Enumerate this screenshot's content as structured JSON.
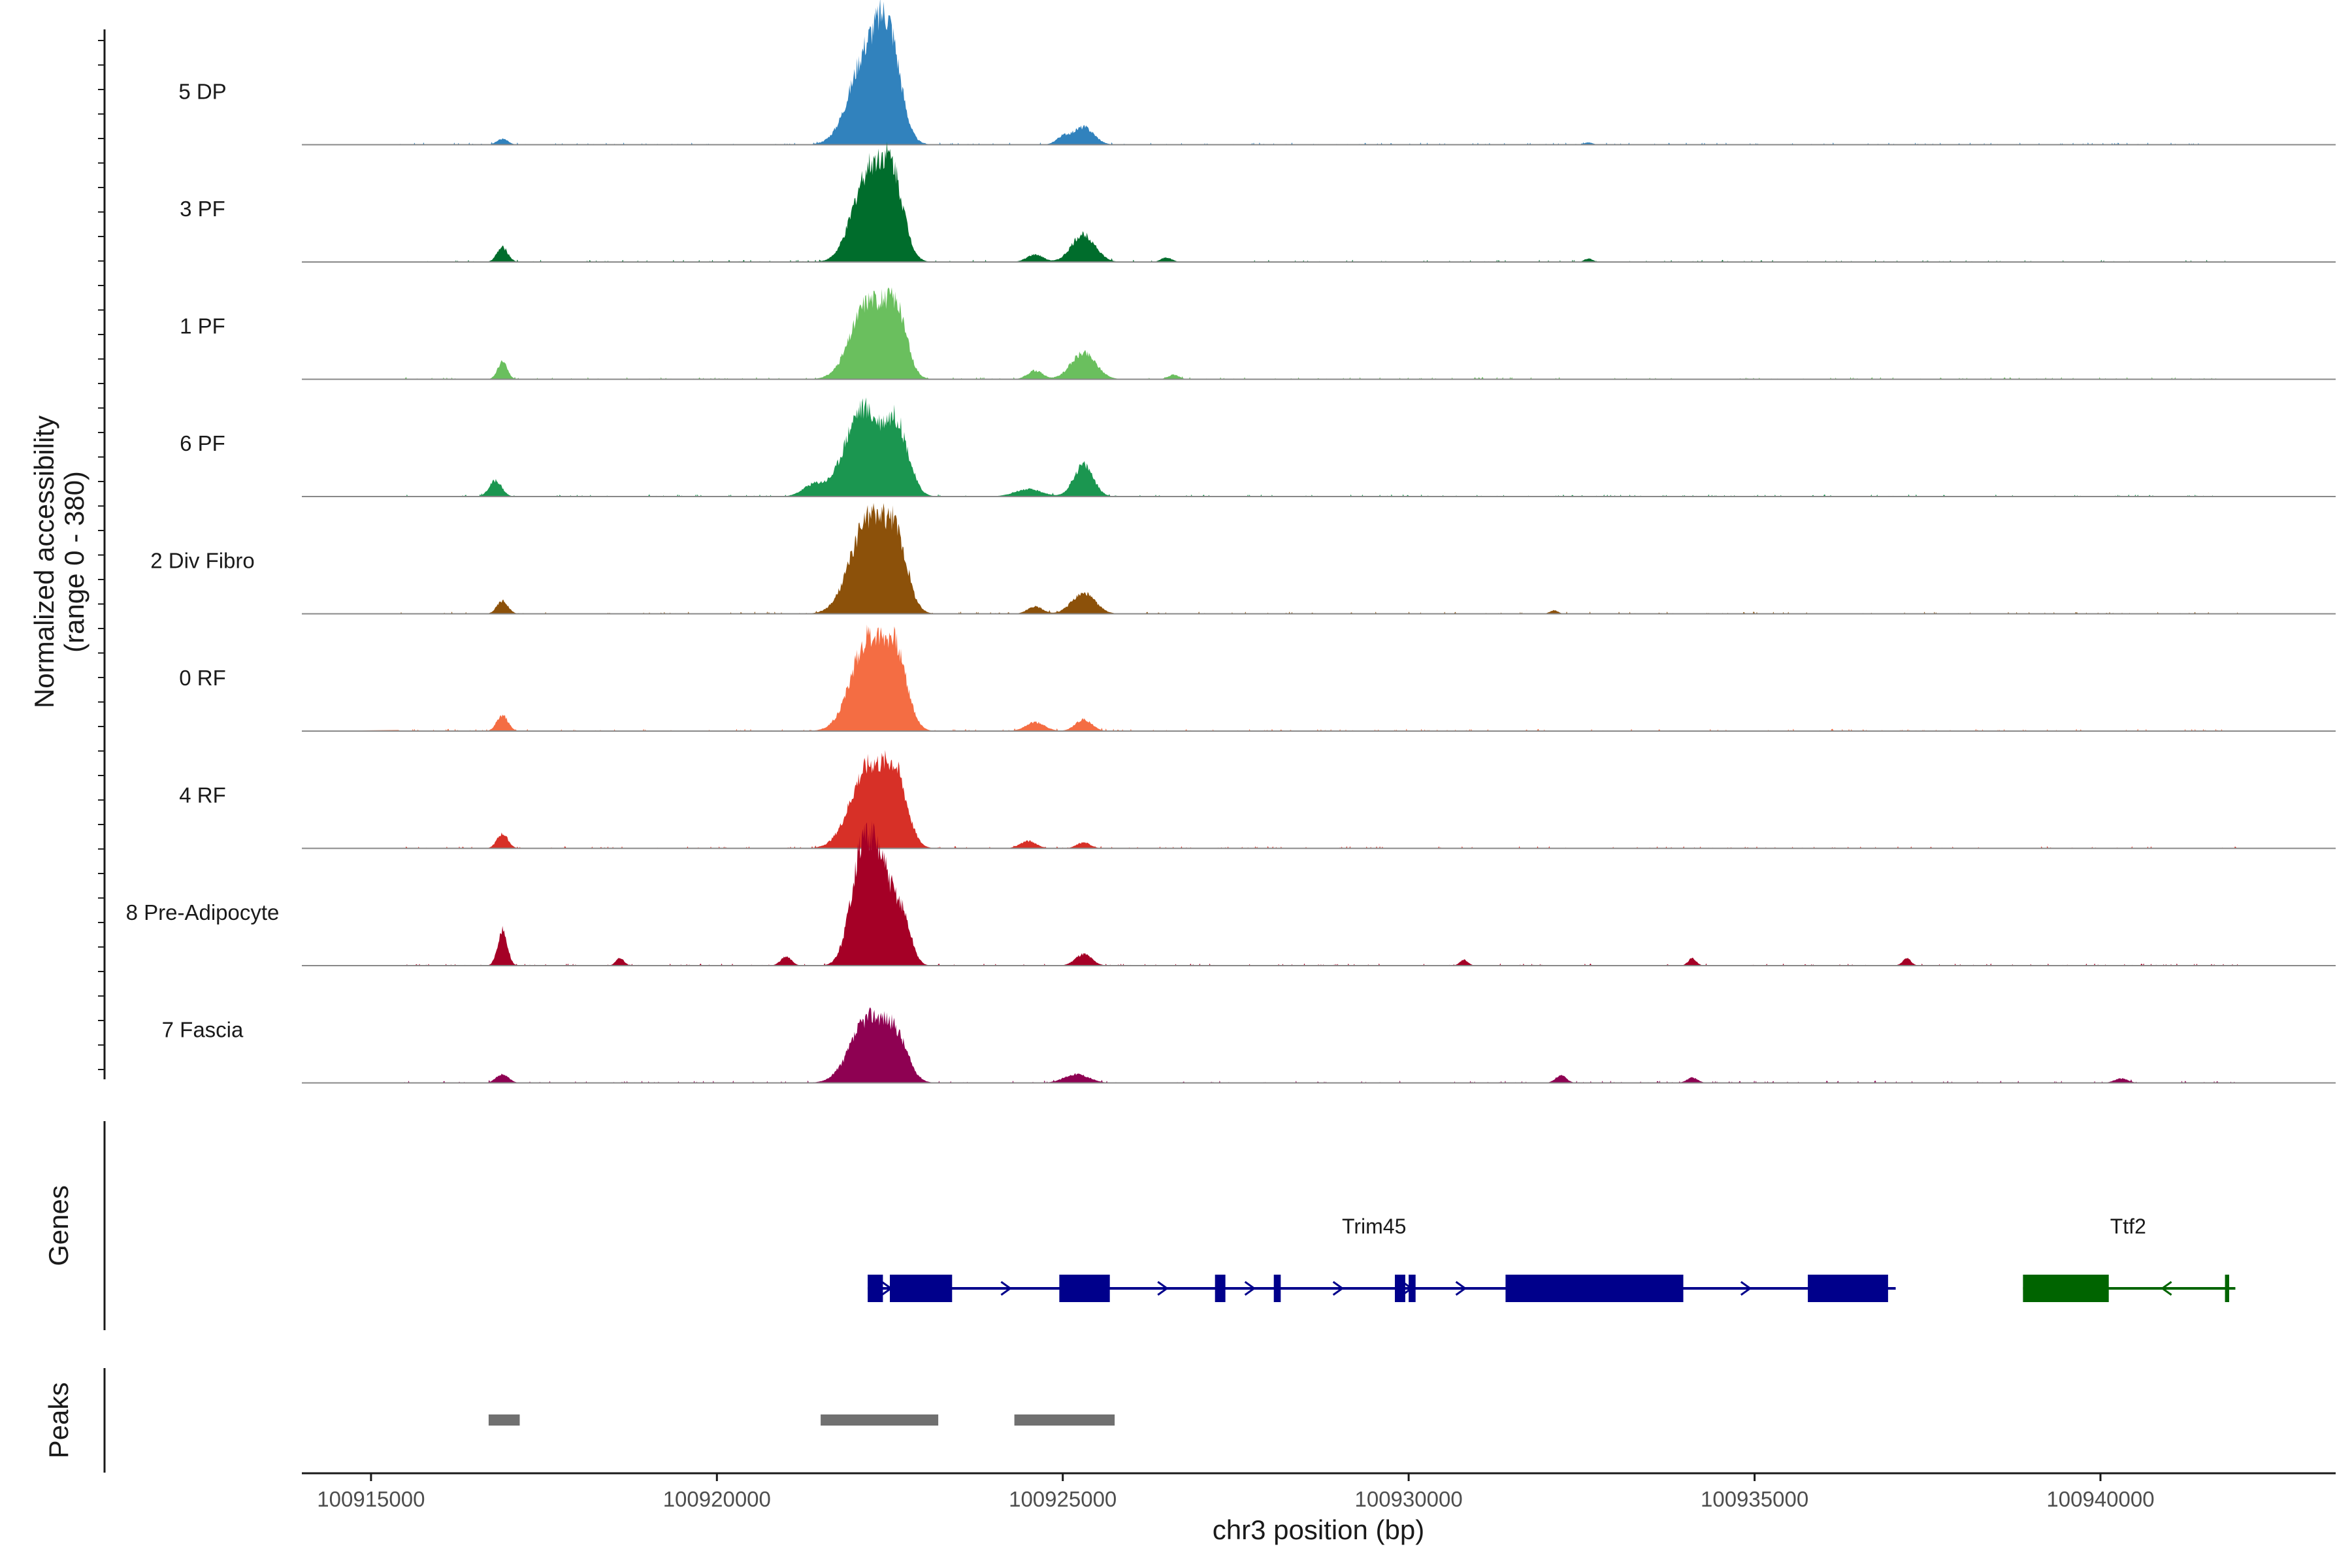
{
  "chart_data": {
    "type": "area",
    "title": "",
    "region": {
      "chrom": "chr3",
      "start": 100914000,
      "end": 100943400
    },
    "y_axis_title_line1": "Normalized accessibility",
    "y_axis_title_line2": "(range 0 - 380)",
    "ylim": [
      0,
      380
    ],
    "xlabel": "chr3 position (bp)",
    "x_ticks": [
      100915000,
      100920000,
      100925000,
      100930000,
      100935000,
      100940000
    ],
    "peak_centers": [
      100916900,
      100922200,
      100925300
    ],
    "tracks": [
      {
        "name": "5 DP",
        "color": "#3182bd",
        "peaks": [
          [
            100916900,
            20,
            80
          ],
          [
            100922200,
            330,
            260
          ],
          [
            100922500,
            250,
            160
          ],
          [
            100925300,
            60,
            150
          ],
          [
            100925000,
            25,
            100
          ],
          [
            100932600,
            8,
            60
          ]
        ]
      },
      {
        "name": "3 PF",
        "color": "#006d2c",
        "peaks": [
          [
            100916900,
            50,
            80
          ],
          [
            100922200,
            310,
            230
          ],
          [
            100922550,
            240,
            160
          ],
          [
            100924600,
            25,
            120
          ],
          [
            100925300,
            95,
            170
          ],
          [
            100926500,
            15,
            80
          ],
          [
            100932600,
            12,
            60
          ]
        ]
      },
      {
        "name": "1 PF",
        "color": "#6abf5e",
        "peaks": [
          [
            100916900,
            60,
            70
          ],
          [
            100922200,
            270,
            250
          ],
          [
            100922600,
            190,
            150
          ],
          [
            100924600,
            30,
            110
          ],
          [
            100925300,
            90,
            180
          ],
          [
            100926600,
            15,
            80
          ]
        ]
      },
      {
        "name": "6 PF",
        "color": "#1b9650",
        "peaks": [
          [
            100916800,
            55,
            90
          ],
          [
            100922100,
            300,
            250
          ],
          [
            100922600,
            230,
            170
          ],
          [
            100921400,
            40,
            160
          ],
          [
            100924500,
            25,
            200
          ],
          [
            100925300,
            110,
            140
          ]
        ]
      },
      {
        "name": "2 Div Fibro",
        "color": "#8c510a",
        "peaks": [
          [
            100916900,
            45,
            80
          ],
          [
            100922200,
            330,
            260
          ],
          [
            100922600,
            200,
            160
          ],
          [
            100925300,
            70,
            170
          ],
          [
            100924600,
            25,
            110
          ],
          [
            100932100,
            12,
            60
          ]
        ]
      },
      {
        "name": "0 RF",
        "color": "#f46d43",
        "peaks": [
          [
            100916900,
            55,
            80
          ],
          [
            100922200,
            320,
            250
          ],
          [
            100922600,
            210,
            160
          ],
          [
            100924600,
            30,
            140
          ],
          [
            100925300,
            40,
            120
          ]
        ]
      },
      {
        "name": "4 RF",
        "color": "#d73027",
        "peaks": [
          [
            100916900,
            50,
            80
          ],
          [
            100922200,
            280,
            260
          ],
          [
            100922600,
            190,
            160
          ],
          [
            100924500,
            25,
            120
          ],
          [
            100925300,
            20,
            100
          ]
        ]
      },
      {
        "name": "8 Pre-Adipocyte",
        "color": "#a50026",
        "peaks": [
          [
            100916900,
            120,
            70
          ],
          [
            100922100,
            360,
            170
          ],
          [
            100922400,
            280,
            180
          ],
          [
            100922700,
            120,
            120
          ],
          [
            100925300,
            40,
            120
          ],
          [
            100921000,
            30,
            80
          ],
          [
            100918600,
            25,
            60
          ],
          [
            100934100,
            25,
            60
          ],
          [
            100937200,
            25,
            60
          ],
          [
            100930800,
            20,
            60
          ]
        ]
      },
      {
        "name": "7 Fascia",
        "color": "#8e0152",
        "peaks": [
          [
            100916900,
            30,
            90
          ],
          [
            100922200,
            220,
            260
          ],
          [
            100922600,
            120,
            170
          ],
          [
            100925200,
            30,
            180
          ],
          [
            100932200,
            25,
            80
          ],
          [
            100934100,
            18,
            80
          ],
          [
            100940300,
            15,
            100
          ]
        ]
      }
    ],
    "genes_track_title": "Genes",
    "genes": [
      {
        "name": "Trim45",
        "strand": "+",
        "color": "#00008b",
        "start": 100922180,
        "end": 100937040,
        "exons": [
          [
            100922180,
            100922400
          ],
          [
            100922500,
            100923400
          ],
          [
            100924950,
            100925680
          ],
          [
            100927200,
            100927350
          ],
          [
            100928050,
            100928150
          ],
          [
            100929800,
            100929950
          ],
          [
            100930000,
            100930100
          ],
          [
            100931400,
            100933970
          ],
          [
            100935770,
            100936930
          ]
        ]
      },
      {
        "name": "Ttf2",
        "strand": "-",
        "color": "#006400",
        "start": 100938880,
        "end": 100941950,
        "exons": [
          [
            100938880,
            100940120
          ],
          [
            100941800,
            100941860
          ]
        ]
      }
    ],
    "peaks_track_title": "Peaks",
    "peak_regions": [
      [
        100916700,
        100917150
      ],
      [
        100921500,
        100923200
      ],
      [
        100924300,
        100925750
      ]
    ]
  }
}
